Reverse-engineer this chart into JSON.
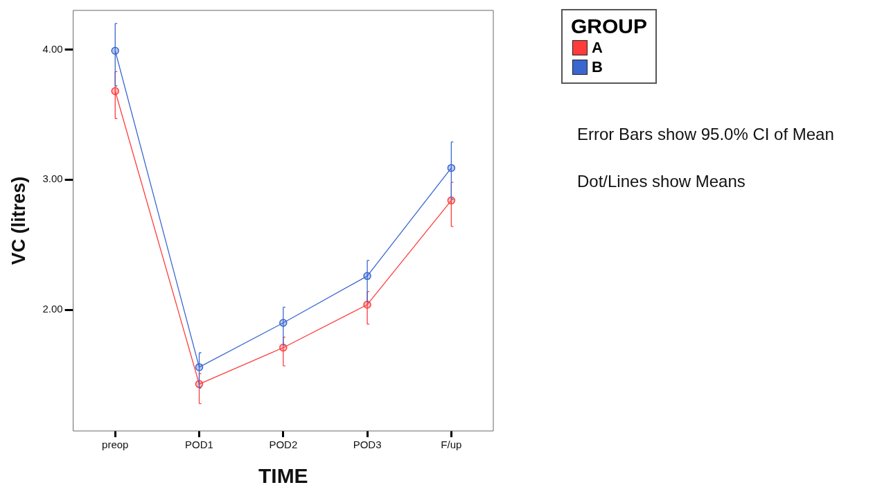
{
  "chart_data": {
    "type": "line",
    "xlabel": "TIME",
    "ylabel": "VC (litres)",
    "legend_title": "GROUP",
    "categories": [
      "preop",
      "POD1",
      "POD2",
      "POD3",
      "F/up"
    ],
    "series": [
      {
        "name": "A",
        "color": "#ff3b3b",
        "values": [
          3.68,
          1.43,
          1.71,
          2.04,
          2.84
        ],
        "errors": [
          [
            3.47,
            3.83
          ],
          [
            1.28,
            1.51
          ],
          [
            1.57,
            1.79
          ],
          [
            1.89,
            2.14
          ],
          [
            2.64,
            2.98
          ]
        ]
      },
      {
        "name": "B",
        "color": "#3a66d0",
        "values": [
          3.99,
          1.56,
          1.9,
          2.26,
          3.09
        ],
        "errors": [
          [
            3.72,
            4.2
          ],
          [
            1.4,
            1.67
          ],
          [
            1.73,
            2.02
          ],
          [
            2.06,
            2.38
          ],
          [
            2.85,
            3.29
          ]
        ]
      }
    ],
    "ylim": [
      1.07,
      4.3
    ],
    "yticks": [
      {
        "value": 2,
        "label": "2.00"
      },
      {
        "value": 3,
        "label": "3.00"
      },
      {
        "value": 4,
        "label": "4.00"
      }
    ],
    "grid": false,
    "legend": "top right",
    "marker": "circle",
    "line_style": "solid",
    "annotations": [
      "Error Bars show 95.0% CI of Mean",
      "Dot/Lines show Means"
    ]
  }
}
